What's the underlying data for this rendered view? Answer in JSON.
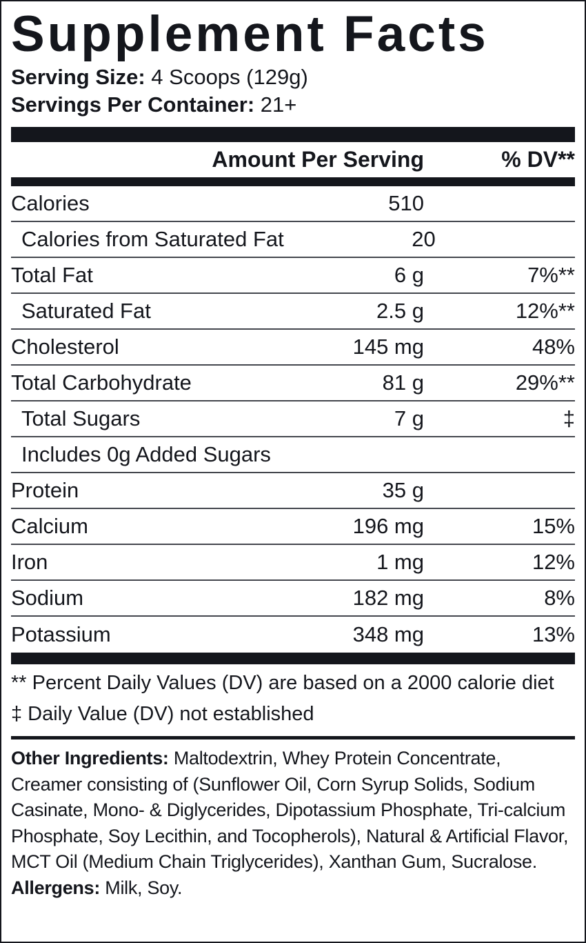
{
  "title": "Supplement Facts",
  "serving": {
    "size_label": "Serving Size:",
    "size_value": " 4 Scoops (129g)",
    "container_label": "Servings Per Container:",
    "container_value": " 21+"
  },
  "table": {
    "header": {
      "amount": "Amount Per Serving",
      "dv": "% DV**"
    },
    "rows": [
      {
        "label": "Calories",
        "amount": "510",
        "dv": "",
        "indent": false
      },
      {
        "label": "Calories from Saturated Fat",
        "amount": "20",
        "dv": "",
        "indent": true
      },
      {
        "label": "Total Fat",
        "amount": "6 g",
        "dv": "7%**",
        "indent": false
      },
      {
        "label": "Saturated Fat",
        "amount": "2.5 g",
        "dv": "12%**",
        "indent": true
      },
      {
        "label": "Cholesterol",
        "amount": "145 mg",
        "dv": "48%",
        "indent": false
      },
      {
        "label": "Total Carbohydrate",
        "amount": "81 g",
        "dv": "29%**",
        "indent": false
      },
      {
        "label": "Total Sugars",
        "amount": "7 g",
        "dv": "‡",
        "indent": true
      },
      {
        "label": "Includes 0g Added Sugars",
        "amount": "",
        "dv": "",
        "indent": true
      },
      {
        "label": "Protein",
        "amount": "35 g",
        "dv": "",
        "indent": false
      },
      {
        "label": "Calcium",
        "amount": "196 mg",
        "dv": "15%",
        "indent": false
      },
      {
        "label": "Iron",
        "amount": "1 mg",
        "dv": "12%",
        "indent": false
      },
      {
        "label": "Sodium",
        "amount": "182 mg",
        "dv": "8%",
        "indent": false
      },
      {
        "label": "Potassium",
        "amount": "348 mg",
        "dv": "13%",
        "indent": false
      }
    ]
  },
  "footnotes": [
    "** Percent Daily Values (DV) are based on a 2000 calorie diet",
    "‡ Daily Value (DV) not established"
  ],
  "other_ingredients": {
    "label": "Other Ingredients:",
    "text": " Maltodextrin, Whey Protein Concentrate, Creamer consisting of (Sunflower Oil, Corn Syrup Solids, Sodium Casinate, Mono- & Diglycerides, Dipotassium Phosphate, Tri-calcium Phosphate, Soy Lecithin, and Tocopherols), Natural & Artificial Flavor, MCT Oil (Medium Chain Triglycerides), Xanthan Gum, Sucralose."
  },
  "allergens": {
    "label": "Allergens:",
    "text": " Milk, Soy."
  },
  "colors": {
    "ink": "#14161c",
    "background": "#ffffff",
    "separator": "#43464d"
  }
}
